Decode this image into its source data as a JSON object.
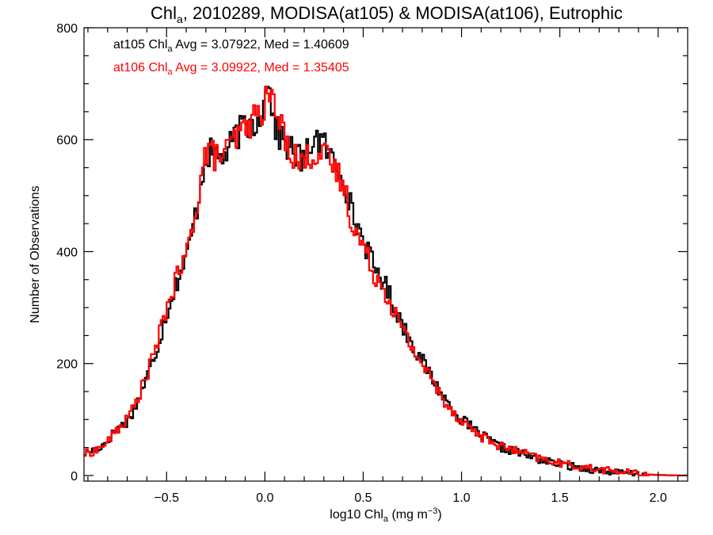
{
  "chart_data": {
    "type": "line",
    "title": {
      "main": "Chl",
      "sub": "a",
      "rest": ", 2010289, MODISA(at105) & MODISA(at106), Eutrophic"
    },
    "xlabel": {
      "main": "log10 Chl",
      "sub": "a",
      "rest": " (mg m",
      "sup": "−3",
      "end": ")"
    },
    "ylabel": "Number of Observations",
    "xlim": [
      -0.92,
      2.15
    ],
    "ylim": [
      -10,
      800
    ],
    "xticks": [
      -0.5,
      0.0,
      0.5,
      1.0,
      1.5,
      2.0
    ],
    "xtick_labels": [
      "−0.5",
      "0.0",
      "0.5",
      "1.0",
      "1.5",
      "2.0"
    ],
    "yticks": [
      0,
      200,
      400,
      600,
      800
    ],
    "ytick_labels": [
      "0",
      "200",
      "400",
      "600",
      "800"
    ],
    "grid": false,
    "legend": "top-left",
    "bin_step": 0.01,
    "series": [
      {
        "color": "#000000",
        "annotation": {
          "prefix": "at105 Chl",
          "sub": "a",
          "rest": " Avg = 3.07922, Med = 1.40609"
        },
        "x": [
          -0.92,
          -0.85,
          -0.8,
          -0.75,
          -0.7,
          -0.65,
          -0.6,
          -0.55,
          -0.5,
          -0.45,
          -0.4,
          -0.35,
          -0.3,
          -0.25,
          -0.2,
          -0.15,
          -0.1,
          -0.05,
          0.0,
          0.02,
          0.04,
          0.06,
          0.1,
          0.15,
          0.2,
          0.25,
          0.3,
          0.35,
          0.4,
          0.45,
          0.5,
          0.55,
          0.6,
          0.65,
          0.7,
          0.75,
          0.8,
          0.85,
          0.9,
          0.95,
          1.0,
          1.1,
          1.2,
          1.3,
          1.4,
          1.5,
          1.6,
          1.7,
          1.8,
          1.9,
          2.0,
          2.1,
          2.15
        ],
        "y": [
          40,
          48,
          62,
          85,
          95,
          130,
          175,
          225,
          290,
          345,
          385,
          470,
          575,
          575,
          570,
          605,
          625,
          630,
          665,
          730,
          640,
          615,
          595,
          575,
          560,
          610,
          590,
          560,
          535,
          460,
          425,
          375,
          350,
          310,
          270,
          235,
          205,
          175,
          145,
          120,
          100,
          72,
          50,
          40,
          28,
          20,
          14,
          9,
          5,
          2,
          1,
          0,
          0
        ]
      },
      {
        "color": "#ff0000",
        "annotation": {
          "prefix": "at106 Chl",
          "sub": "a",
          "rest": " Avg = 3.09922, Med = 1.35405"
        },
        "x": [
          -0.92,
          -0.85,
          -0.8,
          -0.75,
          -0.7,
          -0.65,
          -0.6,
          -0.55,
          -0.5,
          -0.45,
          -0.4,
          -0.35,
          -0.3,
          -0.25,
          -0.2,
          -0.15,
          -0.1,
          -0.05,
          0.0,
          0.02,
          0.04,
          0.06,
          0.1,
          0.15,
          0.2,
          0.25,
          0.3,
          0.35,
          0.4,
          0.45,
          0.5,
          0.55,
          0.6,
          0.65,
          0.7,
          0.75,
          0.8,
          0.85,
          0.9,
          0.95,
          1.0,
          1.1,
          1.2,
          1.3,
          1.4,
          1.5,
          1.6,
          1.7,
          1.8,
          1.9,
          2.0,
          2.1,
          2.15
        ],
        "y": [
          38,
          46,
          60,
          82,
          100,
          135,
          180,
          232,
          300,
          350,
          390,
          480,
          580,
          570,
          575,
          600,
          620,
          640,
          660,
          690,
          670,
          640,
          610,
          570,
          560,
          580,
          570,
          550,
          520,
          445,
          410,
          365,
          340,
          300,
          260,
          228,
          200,
          170,
          140,
          118,
          98,
          70,
          52,
          42,
          30,
          22,
          16,
          11,
          7,
          3,
          1,
          0,
          0
        ]
      }
    ]
  }
}
